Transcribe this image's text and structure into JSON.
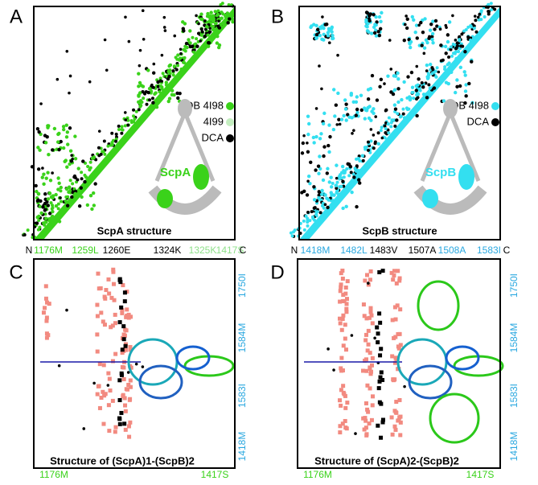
{
  "panels": [
    {
      "label": "A",
      "legend": [
        {
          "text": "PDB 4I98",
          "color": "#3ad21a"
        },
        {
          "text": "4I99",
          "color": "#c4eec0"
        },
        {
          "text": "DCA",
          "color": "#000000"
        }
      ],
      "subunit": "ScpA",
      "caption": "ScpA structure",
      "axis": [
        {
          "text": "N",
          "color": "#000000"
        },
        {
          "text": "1176M",
          "color": "#3ad21a"
        },
        {
          "text": "1259L",
          "color": "#3ad21a"
        },
        {
          "text": "1260E",
          "color": "#000000"
        },
        {
          "text": "1324K",
          "color": "#000000"
        },
        {
          "text": "1325K",
          "color": "#8ee08a"
        },
        {
          "text": "1417S",
          "color": "#8ee08a"
        },
        {
          "text": "C",
          "color": "#000000"
        }
      ]
    },
    {
      "label": "B",
      "legend": [
        {
          "text": "PDB 4I98",
          "color": "#33dff0"
        },
        {
          "text": "DCA",
          "color": "#000000"
        }
      ],
      "subunit": "ScpB",
      "caption": "ScpB structure",
      "axis": [
        {
          "text": "N",
          "color": "#000000"
        },
        {
          "text": "1418M",
          "color": "#2aa8e0"
        },
        {
          "text": "1482L",
          "color": "#2aa8e0"
        },
        {
          "text": "1483V",
          "color": "#000000"
        },
        {
          "text": "1507A",
          "color": "#000000"
        },
        {
          "text": "1508A",
          "color": "#2aa8e0"
        },
        {
          "text": "1583I",
          "color": "#2aa8e0"
        },
        {
          "text": "C",
          "color": "#000000"
        }
      ]
    },
    {
      "label": "C",
      "caption": "Structure of (ScpA)1-(ScpB)2",
      "bottom": [
        "1176M",
        "1417S"
      ],
      "right": [
        "1750I",
        "1584M",
        "1583I",
        "1418M"
      ]
    },
    {
      "label": "D",
      "caption": "Structure of (ScpA)2-(ScpB)2",
      "bottom": [
        "1176M",
        "1417S"
      ],
      "right": [
        "1750I",
        "1584M",
        "1583I",
        "1418M"
      ]
    }
  ]
}
